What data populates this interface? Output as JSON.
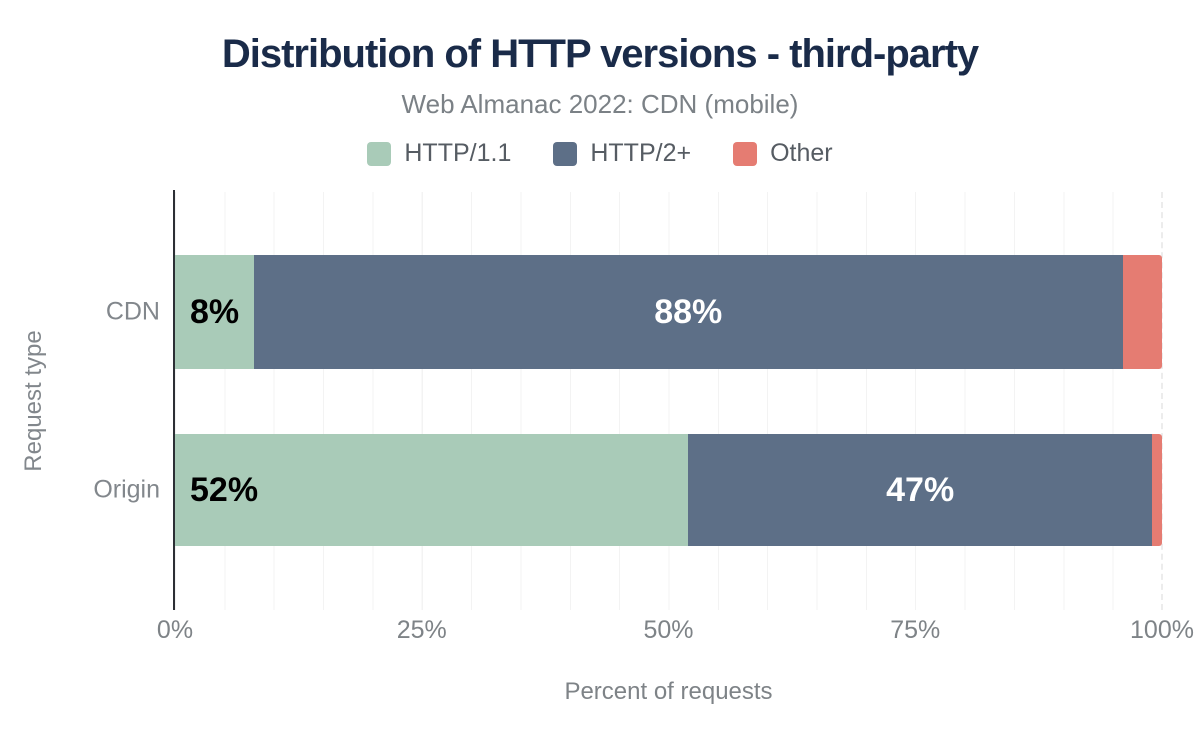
{
  "chart_data": {
    "type": "bar",
    "orientation": "horizontal",
    "stacked": true,
    "title": "Distribution of HTTP versions - third-party",
    "subtitle": "Web Almanac 2022: CDN (mobile)",
    "xlabel": "Percent of requests",
    "ylabel": "Request type",
    "categories": [
      "CDN",
      "Origin"
    ],
    "series": [
      {
        "name": "HTTP/1.1",
        "color": "#a9cbb8",
        "values": [
          8,
          52
        ],
        "labels": [
          "8%",
          "52%"
        ],
        "label_color": "#000000"
      },
      {
        "name": "HTTP/2+",
        "color": "#5d6f87",
        "values": [
          88,
          47
        ],
        "labels": [
          "88%",
          "47%"
        ],
        "label_color": "#ffffff"
      },
      {
        "name": "Other",
        "color": "#e57c72",
        "values": [
          4,
          1
        ],
        "labels": [
          "",
          ""
        ],
        "label_color": "#ffffff"
      }
    ],
    "x_ticks": [
      "0%",
      "25%",
      "50%",
      "75%",
      "100%"
    ],
    "xlim": [
      0,
      100
    ],
    "grid": "vertical, minor every 5%, dashed line at 100%",
    "legend_position": "top"
  },
  "colors": {
    "title": "#1a2b49",
    "subtitle": "#7b8186",
    "axis_line": "#2c2f35",
    "gridline": "#f3f3f3",
    "tick_text": "#7e8387",
    "category_text": "#82878c",
    "legend_text": "#565c63"
  }
}
